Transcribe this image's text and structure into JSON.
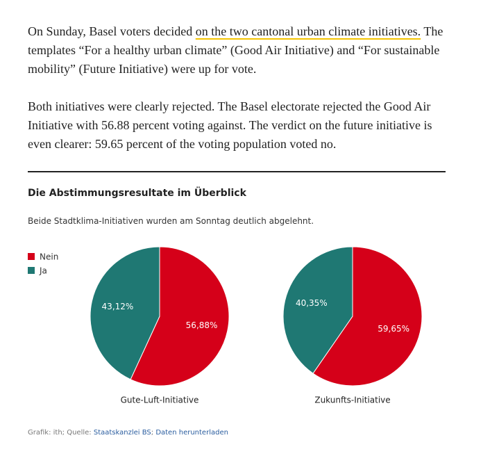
{
  "article": {
    "paragraphs": [
      {
        "before": "On Sunday, Basel voters decided ",
        "link": "on the two cantonal urban climate initiatives.",
        "after": " The templates “For a healthy urban climate” (Good Air Initiative) and “For sustainable mobility” (Future Initiative) were up for vote."
      },
      {
        "text": "Both initiatives were clearly rejected. The Basel electorate rejected the Good Air Initiative with 56.88 percent voting against. The verdict on the future initiative is even clearer: 59.65 percent of the voting population voted no."
      }
    ]
  },
  "graphic": {
    "title": "Die Abstimmungsresultate im Überblick",
    "subtitle": "Beide Stadtklima-Initiativen wurden am Sonntag deutlich abgelehnt.",
    "source": {
      "prefix": "Grafik: ith; Quelle:",
      "link": "Staatskanzlei BS",
      "separator": ";",
      "download": "Daten herunterladen"
    }
  },
  "chart_data": [
    {
      "type": "pie",
      "title": "Gute-Luft-Initiative",
      "categories": [
        "Nein",
        "Ja"
      ],
      "values": [
        56.88,
        43.12
      ],
      "value_labels": [
        "56,88%",
        "43,12%"
      ],
      "colors": [
        "#d50019",
        "#1f7873"
      ],
      "legend": "top-left"
    },
    {
      "type": "pie",
      "title": "Zukunfts-Initiative",
      "categories": [
        "Nein",
        "Ja"
      ],
      "values": [
        59.65,
        40.35
      ],
      "value_labels": [
        "59,65%",
        "40,35%"
      ],
      "colors": [
        "#d50019",
        "#1f7873"
      ]
    }
  ]
}
